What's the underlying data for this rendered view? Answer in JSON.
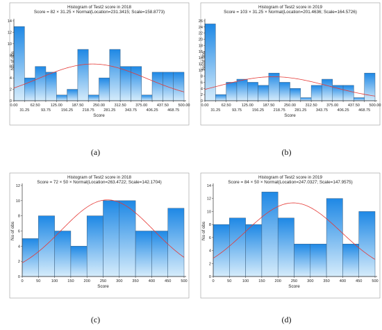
{
  "colors": {
    "bar_top": "#1e88e5",
    "bar_bottom": "#d6ecfb",
    "bar_stroke": "#3a5f80",
    "curve": "#e53935",
    "axis": "#333333",
    "frame": "#9a9a9a"
  },
  "chart_data": [
    {
      "type": "bar",
      "panel_label": "(a)",
      "title": "Histogram of Test2 score in 2018",
      "subtitle": "Score = 82 × 31.25 × Normal(Location=231.3415; Scale=158.8773)",
      "xlabel": "Score",
      "ylabel": "No of obs",
      "bin_edges": [
        0,
        31.25,
        62.5,
        93.75,
        125,
        156.25,
        187.5,
        218.75,
        250,
        281.25,
        312.5,
        343.75,
        375,
        406.25,
        437.5,
        468.75,
        500
      ],
      "values": [
        13,
        4,
        6,
        5,
        1,
        2,
        9,
        1,
        4,
        9,
        6,
        6,
        1,
        5,
        5,
        5
      ],
      "xticks_top": [
        "0.00",
        "62.50",
        "125.00",
        "187.50",
        "250.00",
        "312.50",
        "375.00",
        "437.50",
        "500.00"
      ],
      "xticks_bottom": [
        "31.25",
        "93.75",
        "156.25",
        "218.75",
        "281.25",
        "343.75",
        "406.25",
        "468.75"
      ],
      "yticks": [
        "0",
        "2",
        "4",
        "6",
        "8",
        "10",
        "12",
        "14"
      ],
      "ylim": [
        0,
        14
      ],
      "normal_fit": {
        "n": 82,
        "bin_width": 31.25,
        "location": 231.3415,
        "scale": 158.8773
      }
    },
    {
      "type": "bar",
      "panel_label": "(b)",
      "title": "Histogram of Test2 score in 2019",
      "subtitle": "Score = 103 × 31.25 × Normal(Location=201.4636; Scale=164.5726)",
      "xlabel": "Score",
      "ylabel": "No of obs",
      "bin_edges": [
        0,
        31.25,
        62.5,
        93.75,
        125,
        156.25,
        187.5,
        218.75,
        250,
        281.25,
        312.5,
        343.75,
        375,
        406.25,
        437.5,
        468.75,
        500
      ],
      "values": [
        25,
        2,
        6,
        7,
        6,
        5,
        9,
        6,
        4,
        1,
        5,
        7,
        5,
        5,
        1,
        9
      ],
      "xticks_top": [
        "0.00",
        "62.50",
        "125.00",
        "187.50",
        "250.00",
        "312.50",
        "375.00",
        "437.50",
        "500.00"
      ],
      "xticks_bottom": [
        "31.25",
        "93.75",
        "156.25",
        "218.75",
        "281.25",
        "343.75",
        "406.25",
        "468.75"
      ],
      "yticks": [
        "0",
        "2",
        "4",
        "6",
        "8",
        "10",
        "12",
        "14",
        "16",
        "18",
        "20",
        "22",
        "24",
        "26"
      ],
      "ylim": [
        0,
        26
      ],
      "normal_fit": {
        "n": 103,
        "bin_width": 31.25,
        "location": 201.4636,
        "scale": 164.5726
      }
    },
    {
      "type": "bar",
      "panel_label": "(c)",
      "title": "Histogram of Test2 score in 2018",
      "subtitle": "Score = 72 × 50 × Normal(Location=263.4722; Scale=142.1704)",
      "xlabel": "Score",
      "ylabel": "No of obs",
      "bin_edges": [
        0,
        50,
        100,
        150,
        200,
        250,
        300,
        350,
        400,
        450,
        500
      ],
      "values": [
        5,
        8,
        6,
        4,
        8,
        10,
        10,
        6,
        6,
        9
      ],
      "xticks_top": [
        "0",
        "50",
        "100",
        "150",
        "200",
        "250",
        "300",
        "350",
        "400",
        "450",
        "500"
      ],
      "xticks_bottom": [],
      "yticks": [
        "0",
        "2",
        "4",
        "6",
        "8",
        "10",
        "12"
      ],
      "ylim": [
        0,
        12
      ],
      "normal_fit": {
        "n": 72,
        "bin_width": 50,
        "location": 263.4722,
        "scale": 142.1704
      }
    },
    {
      "type": "bar",
      "panel_label": "(d)",
      "title": "Histogram of Test2 score in 2019",
      "subtitle": "Score = 84 × 50 × Normal(Location=247.0327; Scale=147.9575)",
      "xlabel": "Score",
      "ylabel": "No of obs",
      "bin_edges": [
        0,
        50,
        100,
        150,
        200,
        250,
        300,
        350,
        400,
        450,
        500
      ],
      "values": [
        8,
        9,
        8,
        13,
        9,
        5,
        5,
        12,
        5,
        10
      ],
      "xticks_top": [
        "0",
        "50",
        "100",
        "150",
        "200",
        "250",
        "300",
        "350",
        "400",
        "450",
        "500"
      ],
      "xticks_bottom": [],
      "yticks": [
        "0",
        "2",
        "4",
        "6",
        "8",
        "10",
        "12",
        "14"
      ],
      "ylim": [
        0,
        14
      ],
      "normal_fit": {
        "n": 84,
        "bin_width": 50,
        "location": 247.0327,
        "scale": 147.9575
      }
    }
  ]
}
